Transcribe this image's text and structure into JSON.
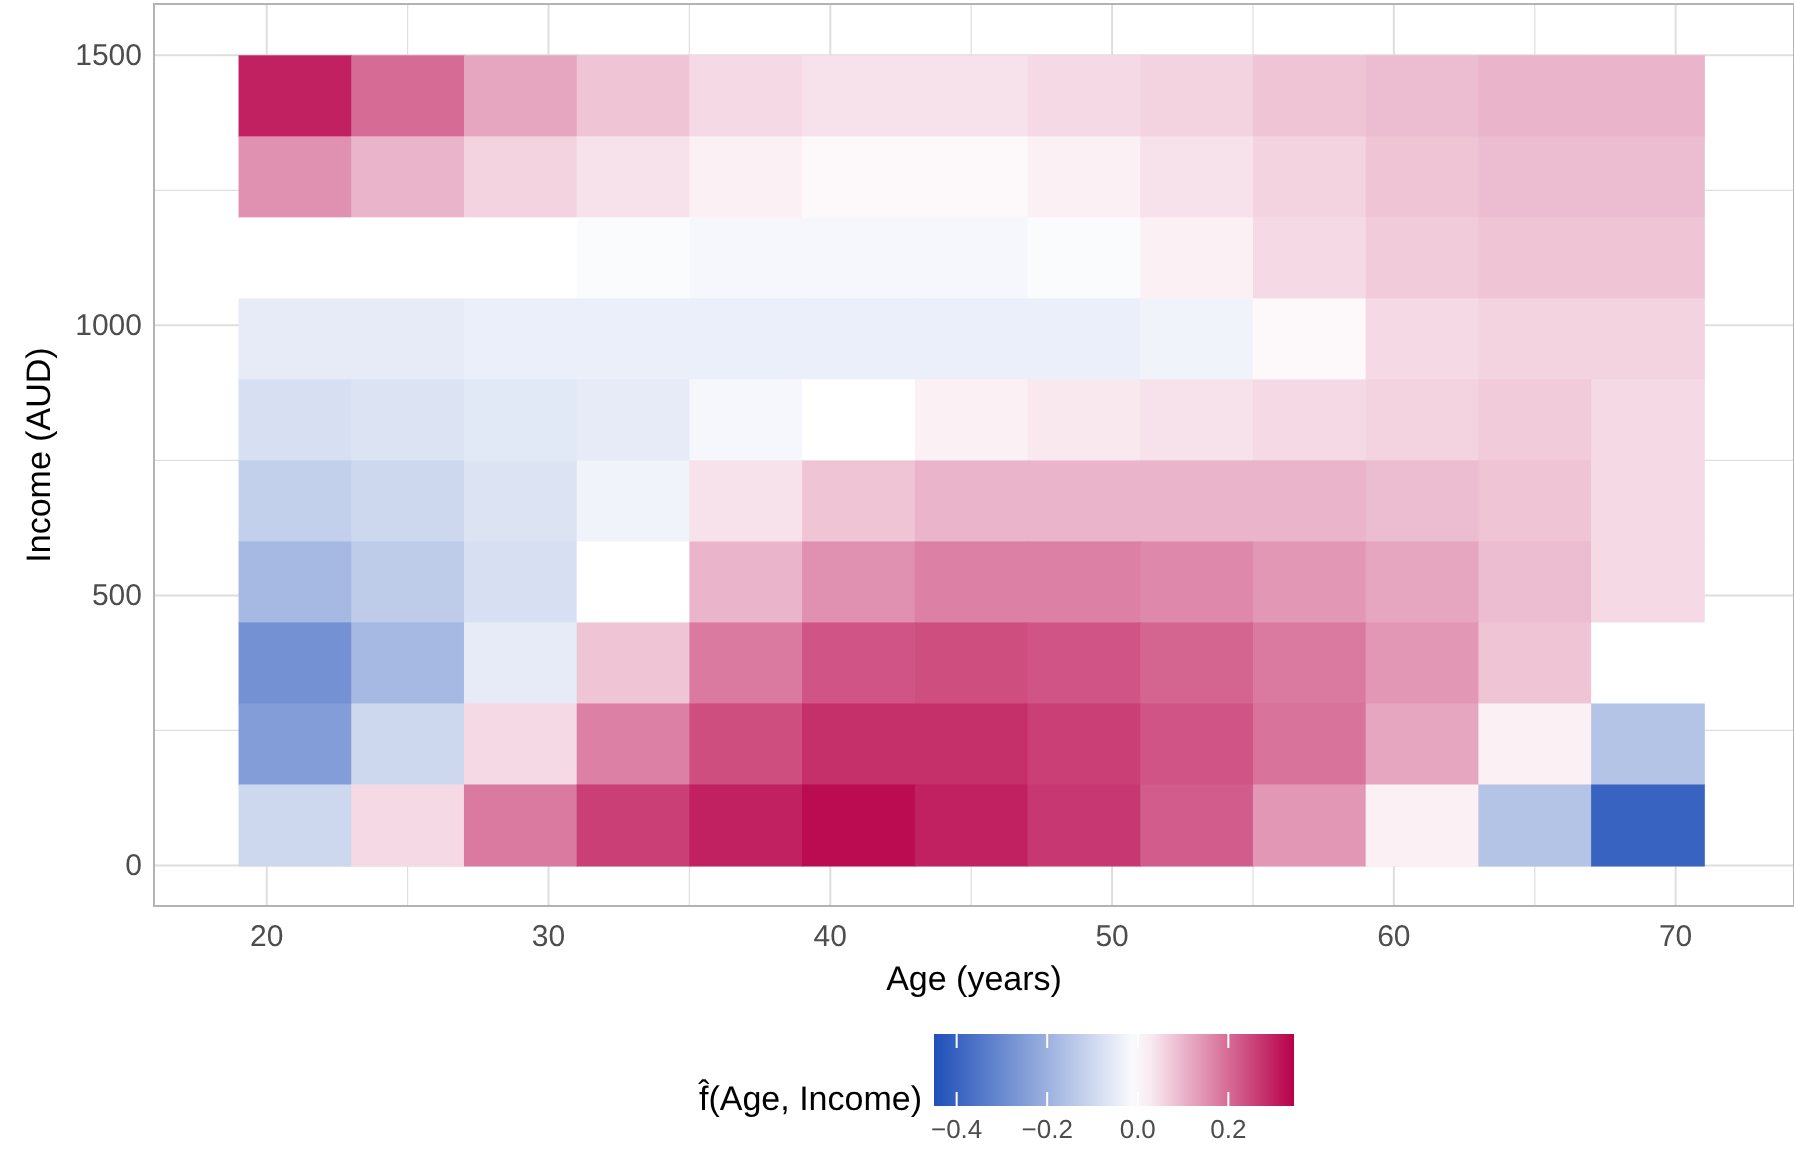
{
  "chart_data": {
    "type": "heatmap",
    "xlabel": "Age (years)",
    "ylabel": "Income (AUD)",
    "clabel": "f̂(Age, Income)",
    "x": [
      21,
      25,
      29,
      33,
      37,
      41,
      45,
      49,
      53,
      57,
      61,
      65,
      69
    ],
    "y": [
      1425,
      1275,
      1125,
      975,
      825,
      675,
      525,
      375,
      225,
      75
    ],
    "cells": [
      [
        0.3,
        0.2,
        0.12,
        0.08,
        0.05,
        0.04,
        0.04,
        0.05,
        0.06,
        0.08,
        0.09,
        0.1,
        0.1
      ],
      [
        0.15,
        0.1,
        0.06,
        0.04,
        0.02,
        0.01,
        0.01,
        0.02,
        0.04,
        0.06,
        0.08,
        0.09,
        0.09
      ],
      [
        0.0,
        0.0,
        0.0,
        -0.01,
        -0.02,
        -0.02,
        -0.02,
        -0.01,
        0.02,
        0.05,
        0.07,
        0.08,
        0.08
      ],
      [
        -0.05,
        -0.05,
        -0.04,
        -0.04,
        -0.04,
        -0.04,
        -0.04,
        -0.04,
        -0.03,
        0.01,
        0.05,
        0.06,
        0.06
      ],
      [
        -0.08,
        -0.07,
        -0.06,
        -0.05,
        -0.02,
        0.0,
        0.02,
        0.03,
        0.04,
        0.05,
        0.06,
        0.07,
        0.05
      ],
      [
        -0.12,
        -0.1,
        -0.07,
        -0.03,
        0.04,
        0.08,
        0.1,
        0.1,
        0.1,
        0.1,
        0.09,
        0.08,
        0.05
      ],
      [
        -0.18,
        -0.13,
        -0.08,
        0.0,
        0.1,
        0.15,
        0.17,
        0.17,
        0.16,
        0.14,
        0.12,
        0.09,
        0.05
      ],
      [
        -0.28,
        -0.18,
        -0.05,
        0.08,
        0.18,
        0.23,
        0.24,
        0.23,
        0.21,
        0.18,
        0.14,
        0.08,
        0.0
      ],
      [
        -0.25,
        -0.1,
        0.05,
        0.17,
        0.24,
        0.28,
        0.28,
        0.26,
        0.23,
        0.19,
        0.12,
        0.02,
        -0.15
      ],
      [
        -0.1,
        0.05,
        0.18,
        0.26,
        0.3,
        0.33,
        0.3,
        0.27,
        0.22,
        0.14,
        0.02,
        -0.15,
        -0.4
      ]
    ],
    "xlim": [
      16,
      74.2
    ],
    "xticks": [
      20,
      {
        "value": 25,
        "label": null
      },
      30,
      {
        "value": 35,
        "label": null
      },
      40,
      {
        "value": 45,
        "label": null
      },
      50,
      {
        "value": 55,
        "label": null
      },
      60,
      {
        "value": 65,
        "label": null
      },
      70
    ],
    "ylim": [
      -75,
      1595
    ],
    "yticks": [
      0,
      {
        "value": 250,
        "label": null
      },
      500,
      {
        "value": 750,
        "label": null
      },
      1000,
      {
        "value": 1250,
        "label": null
      },
      1500
    ],
    "clim": [
      -0.45,
      0.345
    ],
    "cticks": [
      {
        "value": -0.4,
        "label": "−0.4"
      },
      {
        "value": -0.2,
        "label": "−0.2"
      },
      {
        "value": 0,
        "label": "0.0"
      },
      0.2
    ],
    "grid": true
  }
}
